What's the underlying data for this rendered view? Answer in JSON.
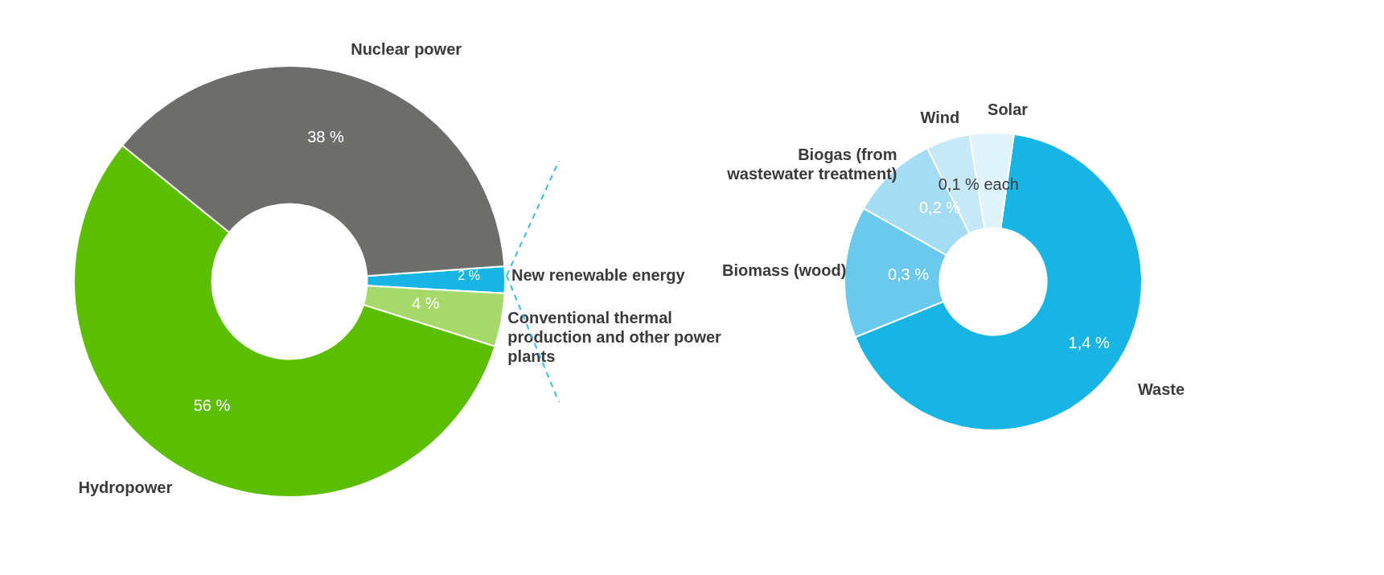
{
  "chart_data": [
    {
      "type": "donut",
      "categories": [
        "New renewable energy",
        "Conventional thermal production and other power plants",
        "Hydropower",
        "Nuclear power"
      ],
      "values": [
        2,
        4,
        56,
        38
      ],
      "colors": [
        "#17b5e3",
        "#a6d96a",
        "#5bbf00",
        "#6d6d6b"
      ],
      "value_labels": [
        "2 %",
        "4 %",
        "56 %",
        "38 %"
      ]
    },
    {
      "type": "donut",
      "categories": [
        "Waste",
        "Biomass (wood)",
        "Biogas (from wastewater treatment)",
        "Wind",
        "Solar"
      ],
      "values": [
        1.4,
        0.3,
        0.2,
        0.1,
        0.1
      ],
      "colors": [
        "#17b5e3",
        "#6ac9ec",
        "#a3dcf3",
        "#c6e9f8",
        "#dff3fb"
      ],
      "value_labels": [
        "1,4 %",
        "0,3 %",
        "0,2 %",
        "0,1 % each",
        null
      ]
    }
  ]
}
